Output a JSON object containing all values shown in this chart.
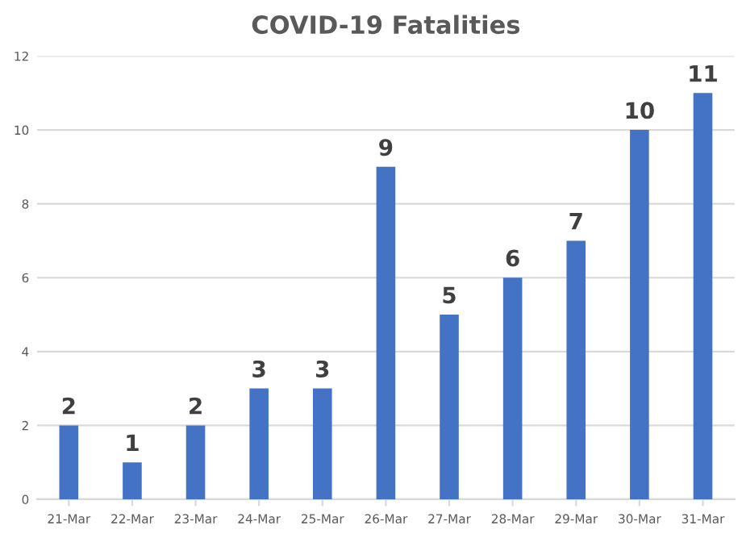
{
  "chart_data": {
    "type": "bar",
    "title": "COVID-19 Fatalities",
    "categories": [
      "21-Mar",
      "22-Mar",
      "23-Mar",
      "24-Mar",
      "25-Mar",
      "26-Mar",
      "27-Mar",
      "28-Mar",
      "29-Mar",
      "30-Mar",
      "31-Mar"
    ],
    "values": [
      2,
      1,
      2,
      3,
      3,
      9,
      5,
      6,
      7,
      10,
      11
    ],
    "color": "#4472c4",
    "ylim": [
      0,
      12
    ],
    "yticks": [
      0,
      2,
      4,
      6,
      8,
      10,
      12
    ],
    "grid": "y",
    "data_labels": true
  }
}
